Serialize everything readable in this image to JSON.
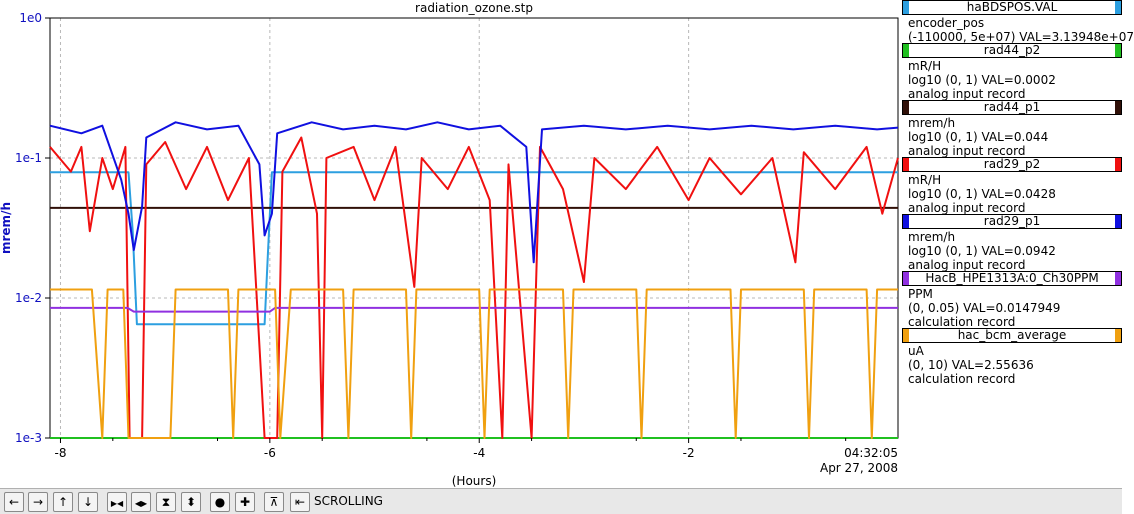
{
  "chart_data": {
    "type": "line",
    "title": "radiation_ozone.stp",
    "xlabel": "(Hours)",
    "ylabel": "mrem/h",
    "y_scale": "log",
    "ylim": [
      0.001,
      1
    ],
    "xlim": [
      -8.1,
      0
    ],
    "x_ticks": [
      -8,
      -6,
      -4,
      -2
    ],
    "x_tick_labels": [
      "-8",
      "-6",
      "-4",
      "-2"
    ],
    "y_ticks": [
      1,
      0.1,
      0.01,
      0.001
    ],
    "y_tick_labels": [
      "1e0",
      "1e-1",
      "1e-2",
      "1e-3"
    ],
    "x_end_time": "04:32:05",
    "x_end_date": "Apr 27, 2008",
    "grid": true,
    "legend_position": "right",
    "series": [
      {
        "name": "haBDSPOS.VAL",
        "color": "#2c9fe0",
        "points": [
          [
            -8.1,
            0.079
          ],
          [
            -7.35,
            0.079
          ],
          [
            -7.31,
            0.03
          ],
          [
            -7.27,
            0.0065
          ],
          [
            -6.05,
            0.0065
          ],
          [
            -6.02,
            0.02
          ],
          [
            -5.98,
            0.079
          ],
          [
            0,
            0.079
          ]
        ]
      },
      {
        "name": "rad44_p2",
        "color": "#20c020",
        "points": [
          [
            -8.1,
            0.001
          ],
          [
            0,
            0.001
          ]
        ]
      },
      {
        "name": "rad44_p1",
        "color": "#301008",
        "points": [
          [
            -8.1,
            0.044
          ],
          [
            0,
            0.044
          ]
        ]
      },
      {
        "name": "rad29_p2",
        "color": "#f01010",
        "points": [
          [
            -8.1,
            0.12
          ],
          [
            -7.9,
            0.08
          ],
          [
            -7.8,
            0.12
          ],
          [
            -7.72,
            0.03
          ],
          [
            -7.6,
            0.1
          ],
          [
            -7.5,
            0.06
          ],
          [
            -7.38,
            0.12
          ],
          [
            -7.34,
            0.001
          ],
          [
            -7.22,
            0.001
          ],
          [
            -7.18,
            0.09
          ],
          [
            -7.0,
            0.13
          ],
          [
            -6.8,
            0.06
          ],
          [
            -6.6,
            0.12
          ],
          [
            -6.4,
            0.05
          ],
          [
            -6.2,
            0.1
          ],
          [
            -6.05,
            0.001
          ],
          [
            -5.93,
            0.001
          ],
          [
            -5.88,
            0.08
          ],
          [
            -5.7,
            0.14
          ],
          [
            -5.55,
            0.04
          ],
          [
            -5.5,
            0.001
          ],
          [
            -5.46,
            0.1
          ],
          [
            -5.2,
            0.12
          ],
          [
            -5.0,
            0.05
          ],
          [
            -4.8,
            0.12
          ],
          [
            -4.62,
            0.012
          ],
          [
            -4.55,
            0.1
          ],
          [
            -4.3,
            0.06
          ],
          [
            -4.1,
            0.12
          ],
          [
            -3.9,
            0.05
          ],
          [
            -3.78,
            0.001
          ],
          [
            -3.72,
            0.09
          ],
          [
            -3.5,
            0.001
          ],
          [
            -3.42,
            0.12
          ],
          [
            -3.2,
            0.06
          ],
          [
            -3.0,
            0.013
          ],
          [
            -2.9,
            0.1
          ],
          [
            -2.6,
            0.06
          ],
          [
            -2.3,
            0.12
          ],
          [
            -2.0,
            0.05
          ],
          [
            -1.8,
            0.1
          ],
          [
            -1.5,
            0.055
          ],
          [
            -1.2,
            0.1
          ],
          [
            -0.98,
            0.018
          ],
          [
            -0.9,
            0.11
          ],
          [
            -0.6,
            0.06
          ],
          [
            -0.3,
            0.12
          ],
          [
            -0.15,
            0.04
          ],
          [
            0,
            0.1
          ]
        ]
      },
      {
        "name": "rad29_p1",
        "color": "#1010e0",
        "points": [
          [
            -8.1,
            0.17
          ],
          [
            -7.8,
            0.15
          ],
          [
            -7.6,
            0.17
          ],
          [
            -7.42,
            0.07
          ],
          [
            -7.35,
            0.04
          ],
          [
            -7.3,
            0.022
          ],
          [
            -7.22,
            0.045
          ],
          [
            -7.18,
            0.14
          ],
          [
            -6.9,
            0.18
          ],
          [
            -6.6,
            0.16
          ],
          [
            -6.3,
            0.17
          ],
          [
            -6.1,
            0.09
          ],
          [
            -6.05,
            0.028
          ],
          [
            -5.98,
            0.04
          ],
          [
            -5.93,
            0.15
          ],
          [
            -5.6,
            0.18
          ],
          [
            -5.3,
            0.16
          ],
          [
            -5.0,
            0.17
          ],
          [
            -4.7,
            0.16
          ],
          [
            -4.4,
            0.18
          ],
          [
            -4.1,
            0.16
          ],
          [
            -3.8,
            0.17
          ],
          [
            -3.55,
            0.12
          ],
          [
            -3.48,
            0.018
          ],
          [
            -3.4,
            0.16
          ],
          [
            -3.0,
            0.17
          ],
          [
            -2.6,
            0.16
          ],
          [
            -2.2,
            0.17
          ],
          [
            -1.8,
            0.16
          ],
          [
            -1.4,
            0.17
          ],
          [
            -1.0,
            0.16
          ],
          [
            -0.6,
            0.17
          ],
          [
            -0.2,
            0.16
          ],
          [
            0,
            0.165
          ]
        ]
      },
      {
        "name": "HacB_HPE1313A:0_Ch30PPM",
        "color": "#9030e0",
        "points": [
          [
            -8.1,
            0.0085
          ],
          [
            -7.36,
            0.0085
          ],
          [
            -7.3,
            0.008
          ],
          [
            -6.0,
            0.008
          ],
          [
            -5.95,
            0.0085
          ],
          [
            0,
            0.0085
          ]
        ]
      },
      {
        "name": "hac_bcm_average",
        "color": "#f0a010",
        "points": [
          [
            -8.1,
            0.0115
          ],
          [
            -7.7,
            0.0115
          ],
          [
            -7.6,
            0.001
          ],
          [
            -7.55,
            0.0115
          ],
          [
            -7.4,
            0.0115
          ],
          [
            -7.35,
            0.001
          ],
          [
            -6.95,
            0.001
          ],
          [
            -6.9,
            0.0115
          ],
          [
            -6.4,
            0.0115
          ],
          [
            -6.35,
            0.001
          ],
          [
            -6.3,
            0.0115
          ],
          [
            -5.95,
            0.0115
          ],
          [
            -5.9,
            0.001
          ],
          [
            -5.8,
            0.0115
          ],
          [
            -5.3,
            0.0115
          ],
          [
            -5.25,
            0.001
          ],
          [
            -5.2,
            0.0115
          ],
          [
            -4.7,
            0.0115
          ],
          [
            -4.65,
            0.001
          ],
          [
            -4.6,
            0.0115
          ],
          [
            -4.0,
            0.0115
          ],
          [
            -3.95,
            0.001
          ],
          [
            -3.9,
            0.0115
          ],
          [
            -3.2,
            0.0115
          ],
          [
            -3.15,
            0.001
          ],
          [
            -3.1,
            0.0115
          ],
          [
            -2.5,
            0.0115
          ],
          [
            -2.45,
            0.001
          ],
          [
            -2.4,
            0.0115
          ],
          [
            -1.6,
            0.0115
          ],
          [
            -1.55,
            0.001
          ],
          [
            -1.5,
            0.0115
          ],
          [
            -0.9,
            0.0115
          ],
          [
            -0.85,
            0.001
          ],
          [
            -0.8,
            0.0115
          ],
          [
            -0.3,
            0.0115
          ],
          [
            -0.25,
            0.001
          ],
          [
            -0.2,
            0.0115
          ],
          [
            0,
            0.0115
          ]
        ]
      }
    ]
  },
  "legend": [
    {
      "name": "haBDSPOS.VAL",
      "color": "#2c9fe0",
      "lines": [
        "encoder_pos",
        "(-110000, 5e+07) VAL=3.13948e+07"
      ]
    },
    {
      "name": "rad44_p2",
      "color": "#20c020",
      "lines": [
        "mR/H",
        "log10 (0, 1) VAL=0.0002",
        "analog input record"
      ]
    },
    {
      "name": "rad44_p1",
      "color": "#301008",
      "lines": [
        "mrem/h",
        "log10 (0, 1) VAL=0.044",
        "analog input record"
      ]
    },
    {
      "name": "rad29_p2",
      "color": "#f01010",
      "lines": [
        "mR/H",
        "log10 (0, 1) VAL=0.0428",
        "analog input record"
      ]
    },
    {
      "name": "rad29_p1",
      "color": "#1010e0",
      "lines": [
        "mrem/h",
        "log10 (0, 1) VAL=0.0942",
        "analog input record"
      ]
    },
    {
      "name": "HacB_HPE1313A:0_Ch30PPM",
      "color": "#9030e0",
      "lines": [
        "PPM",
        "(0, 0.05) VAL=0.0147949",
        "calculation record"
      ]
    },
    {
      "name": "hac_bcm_average",
      "color": "#f0a010",
      "lines": [
        "uA",
        "(0, 10) VAL=2.55636",
        "calculation record"
      ]
    }
  ],
  "toolbar": {
    "buttons": [
      {
        "name": "scroll-left",
        "glyph": "←"
      },
      {
        "name": "scroll-right",
        "glyph": "→"
      },
      {
        "name": "scroll-up",
        "glyph": "↑"
      },
      {
        "name": "scroll-down",
        "glyph": "↓"
      },
      {
        "name": "zoom-in-x",
        "glyph": "▶◀"
      },
      {
        "name": "zoom-out-x",
        "glyph": "◀▶"
      },
      {
        "name": "zoom-in-y",
        "glyph": "⧗"
      },
      {
        "name": "zoom-out-y",
        "glyph": "⬍"
      },
      {
        "name": "auto-zoom",
        "glyph": "●"
      },
      {
        "name": "default-zoom",
        "glyph": "✚"
      },
      {
        "name": "stagger",
        "glyph": "⊼"
      },
      {
        "name": "pause",
        "glyph": "⇤"
      }
    ],
    "status": "SCROLLING"
  }
}
